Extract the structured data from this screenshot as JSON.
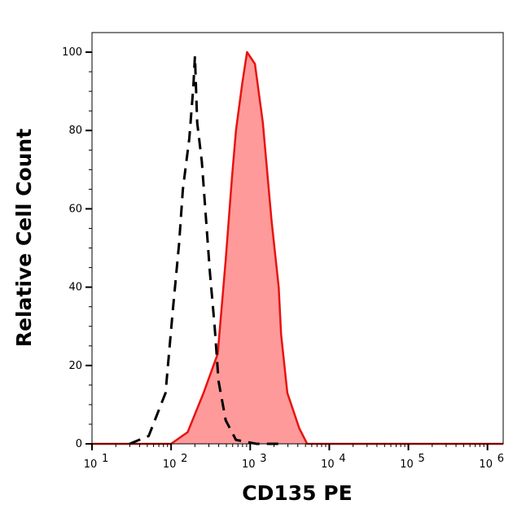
{
  "chart_data": {
    "type": "area",
    "title": "",
    "xlabel": "CD135 PE",
    "ylabel": "Relative Cell Count",
    "x_scale": "log",
    "xlim": [
      10,
      1580000
    ],
    "ylim": [
      0,
      105
    ],
    "x_ticks": [
      10,
      100,
      1000,
      10000,
      100000,
      1000000
    ],
    "x_tick_labels": [
      {
        "base": "10",
        "exp": "1"
      },
      {
        "base": "10",
        "exp": "2"
      },
      {
        "base": "10",
        "exp": "3"
      },
      {
        "base": "10",
        "exp": "4"
      },
      {
        "base": "10",
        "exp": "5"
      },
      {
        "base": "10",
        "exp": "6"
      }
    ],
    "y_ticks": [
      0,
      20,
      40,
      60,
      80,
      100
    ],
    "y_tick_labels": [
      "0",
      "20",
      "40",
      "60",
      "80",
      "100"
    ],
    "grid": false,
    "series": [
      {
        "style": "filled",
        "line_color": "#e8130f",
        "fill_color": "#ff9a9a",
        "x": [
          10,
          100,
          162,
          257,
          389,
          490,
          589,
          661,
          794,
          912,
          1148,
          1445,
          1862,
          2291,
          2455,
          2951,
          4169,
          5248,
          1580000
        ],
        "y": [
          0,
          0,
          3,
          13,
          23,
          47,
          68,
          80,
          92,
          100,
          97,
          82,
          57,
          40,
          28,
          13,
          4,
          0,
          0
        ]
      },
      {
        "style": "dashed",
        "line_color": "#000000",
        "x": [
          30,
          52,
          85,
          105,
          126,
          141,
          170,
          191,
          200,
          214,
          245,
          275,
          309,
          355,
          398,
          490,
          661,
          1200,
          2500
        ],
        "y": [
          0,
          2,
          13,
          34,
          51,
          65,
          78,
          91,
          99,
          82,
          72,
          58,
          44,
          30,
          16,
          6,
          1,
          0,
          0
        ]
      }
    ]
  }
}
